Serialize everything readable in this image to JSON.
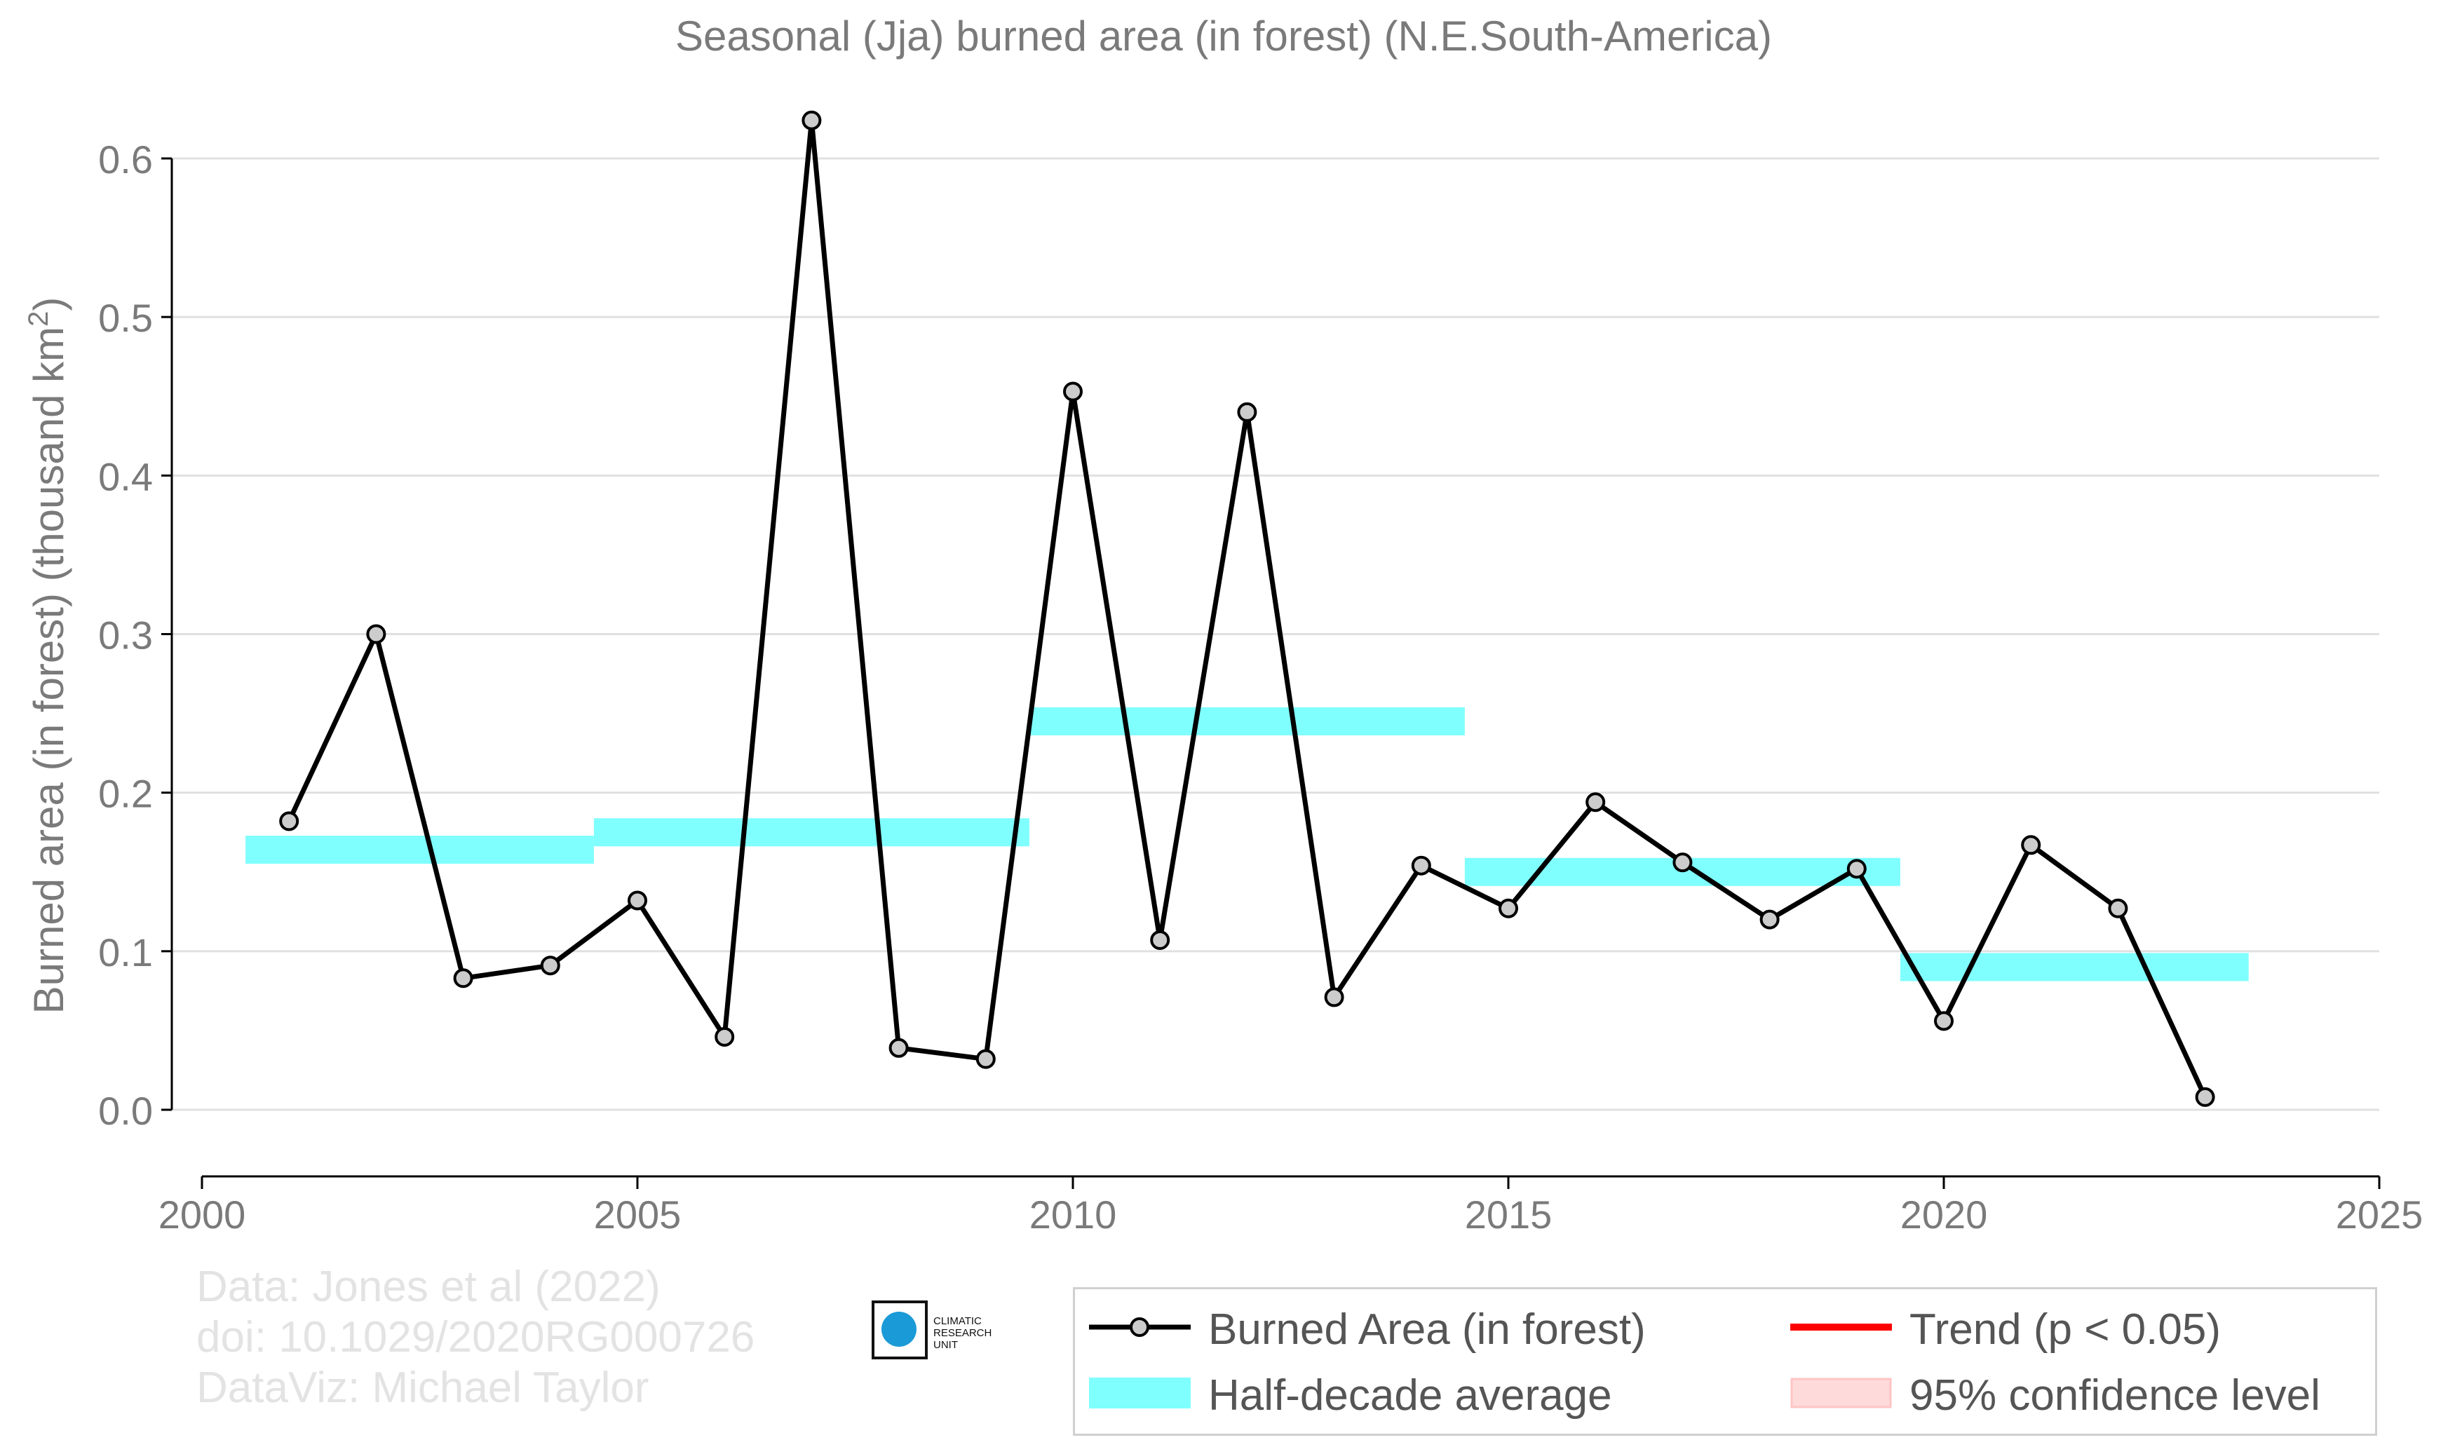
{
  "chart_data": {
    "type": "line",
    "title": "Seasonal (Jja) burned area (in forest) (N.E.South-America)",
    "ylabel": "Burned area (in forest) (thousand km²)",
    "xlabel": "",
    "xlim": [
      2000,
      2025
    ],
    "ylim": [
      0.0,
      0.6
    ],
    "x_ticks": [
      "2000",
      "2005",
      "2010",
      "2015",
      "2020",
      "2025"
    ],
    "y_ticks": [
      "0.0",
      "0.1",
      "0.2",
      "0.3",
      "0.4",
      "0.5",
      "0.6"
    ],
    "grid": "horizontal",
    "series": [
      {
        "name": "Burned Area (in forest)",
        "type": "line-markers",
        "color": "#000000",
        "marker_fill": "#cccccc",
        "x": [
          2001,
          2002,
          2003,
          2004,
          2005,
          2006,
          2007,
          2008,
          2009,
          2010,
          2011,
          2012,
          2013,
          2014,
          2015,
          2016,
          2017,
          2018,
          2019,
          2020,
          2021,
          2022,
          2023
        ],
        "y": [
          0.182,
          0.3,
          0.083,
          0.091,
          0.132,
          0.046,
          0.624,
          0.039,
          0.032,
          0.453,
          0.107,
          0.44,
          0.071,
          0.154,
          0.127,
          0.194,
          0.156,
          0.12,
          0.152,
          0.056,
          0.167,
          0.127,
          0.008
        ]
      },
      {
        "name": "Half-decade average",
        "type": "step-band",
        "color": "#80ffff",
        "segments": [
          {
            "x0": 2000.5,
            "x1": 2004.5,
            "y": 0.164
          },
          {
            "x0": 2004.5,
            "x1": 2009.5,
            "y": 0.175
          },
          {
            "x0": 2009.5,
            "x1": 2014.5,
            "y": 0.245
          },
          {
            "x0": 2014.5,
            "x1": 2019.5,
            "y": 0.15
          },
          {
            "x0": 2019.5,
            "x1": 2023.5,
            "y": 0.09
          }
        ]
      }
    ],
    "legend": {
      "placement": "bottom-right",
      "entries": [
        {
          "label": "Burned Area (in forest)",
          "key": "line-marker",
          "color": "#000000"
        },
        {
          "label": "Trend (p < 0.05)",
          "key": "line",
          "color": "#ff0000"
        },
        {
          "label": "Half-decade average",
          "key": "band",
          "color": "#80ffff"
        },
        {
          "label": "95% confidence level",
          "key": "band",
          "color": "#ffdada"
        }
      ]
    }
  },
  "credits": [
    "Data: Jones et al (2022)",
    "doi: 10.1029/2020RG000726",
    "DataViz: Michael Taylor"
  ],
  "logo": {
    "name": "climatic-research-unit-logo",
    "lines": [
      "CLIMATIC",
      "RESEARCH",
      "UNIT"
    ]
  }
}
